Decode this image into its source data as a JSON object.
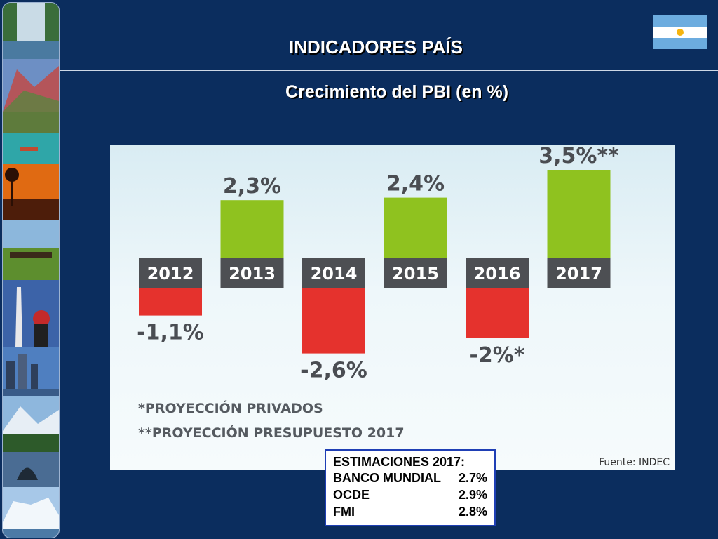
{
  "slide": {
    "title": "INDICADORES PAÍS",
    "subtitle": "Crecimiento del PBI (en %)"
  },
  "flag_icon": "argentina-flag-icon",
  "photos": [
    "waterfall-photo",
    "mountains-photo",
    "river-photo",
    "sunset-palms-photo",
    "cattle-field-photo",
    "obelisk-tango-photo",
    "skyline-photo",
    "lake-mountains-photo",
    "whale-photo",
    "glacier-photo"
  ],
  "chart_data": {
    "type": "bar",
    "categories": [
      "2012",
      "2013",
      "2014",
      "2015",
      "2016",
      "2017"
    ],
    "values": [
      -1.1,
      2.3,
      -2.6,
      2.4,
      -2.0,
      3.5
    ],
    "value_labels": [
      "-1,1%",
      "2,3%",
      "-2,6%",
      "2,4%",
      "-2%*",
      "3,5%**"
    ],
    "colors": {
      "positive": "#8fc21f",
      "negative": "#e5322d",
      "year_box": "#4d4f53"
    },
    "footnotes": [
      "*PROYECCIÓN PRIVADOS",
      "**PROYECCIÓN PRESUPUESTO 2017"
    ],
    "source": "Fuente: INDEC"
  },
  "estimates": {
    "title": "ESTIMACIONES 2017:",
    "rows": [
      {
        "label": "BANCO MUNDIAL",
        "value": "2.7%"
      },
      {
        "label": "OCDE",
        "value": "2.9%"
      },
      {
        "label": "FMI",
        "value": "2.8%"
      }
    ]
  }
}
